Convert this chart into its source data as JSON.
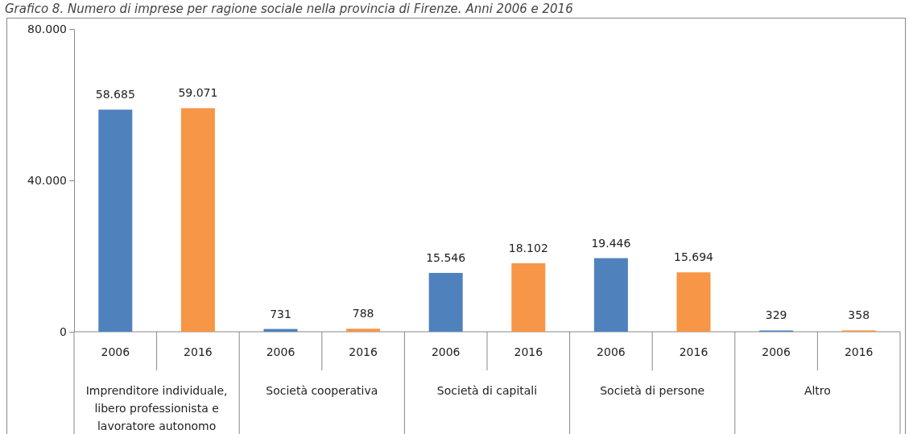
{
  "chart_data": {
    "type": "bar",
    "title": "Grafico 8. Numero di imprese per ragione sociale nella provincia di Firenze. Anni 2006 e 2016",
    "categories": [
      "Imprenditore individuale, libero professionista e lavoratore autonomo",
      "Società cooperativa",
      "Società di capitali",
      "Società di persone",
      "Altro"
    ],
    "series": [
      {
        "name": "2006",
        "color": "#4f81bd",
        "values": [
          58685,
          731,
          15546,
          19446,
          329
        ],
        "value_labels": [
          "58.685",
          "731",
          "15.546",
          "19.446",
          "329"
        ]
      },
      {
        "name": "2016",
        "color": "#f79646",
        "values": [
          59071,
          788,
          18102,
          15694,
          358
        ],
        "value_labels": [
          "59.071",
          "788",
          "18.102",
          "15.694",
          "358"
        ]
      }
    ],
    "ylim": [
      0,
      80000
    ],
    "yticks": [
      {
        "value": 0,
        "label": "0"
      },
      {
        "value": 40000,
        "label": "40.000"
      },
      {
        "value": 80000,
        "label": "80.000"
      }
    ],
    "grid": false
  }
}
